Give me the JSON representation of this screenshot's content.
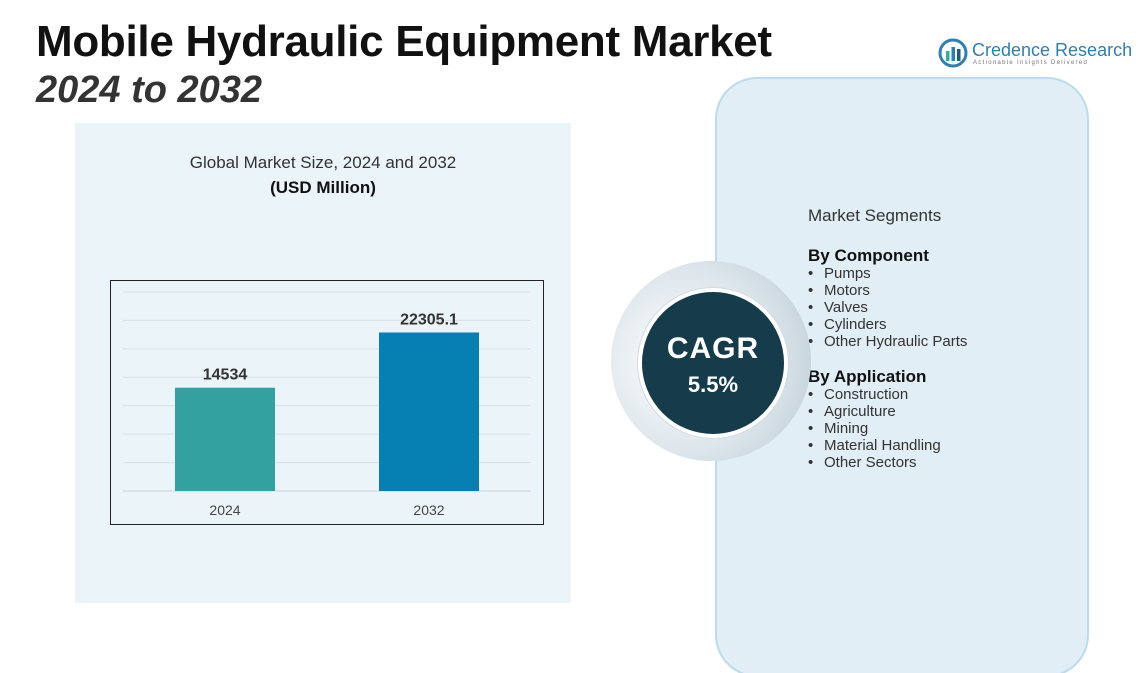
{
  "header": {
    "title": "Mobile Hydraulic Equipment Market",
    "subtitle": "2024 to 2032"
  },
  "logo": {
    "name": "Credence Research",
    "tagline": "Actionable Insights Delivered",
    "color": "#2f7fb0"
  },
  "chart_data": {
    "type": "bar",
    "title": "Global Market Size, 2024 and 2032",
    "subtitle": "(USD Million)",
    "categories": [
      "2024",
      "2032"
    ],
    "values": [
      14534,
      22305.1
    ],
    "value_labels": [
      "14534",
      "22305.1"
    ],
    "bar_colors": [
      "#32a1a0",
      "#0680b2"
    ],
    "ylim": [
      0,
      28000
    ],
    "grid": true,
    "xlabel": "",
    "ylabel": ""
  },
  "cagr": {
    "label": "CAGR",
    "value": "5.5%"
  },
  "segments": {
    "heading": "Market Segments",
    "groups": [
      {
        "title": "By Component",
        "items": [
          "Pumps",
          "Motors",
          "Valves",
          "Cylinders",
          "Other Hydraulic Parts"
        ]
      },
      {
        "title": "By Application",
        "items": [
          "Construction",
          "Agriculture",
          "Mining",
          "Material Handling",
          "Other Sectors"
        ]
      }
    ]
  }
}
